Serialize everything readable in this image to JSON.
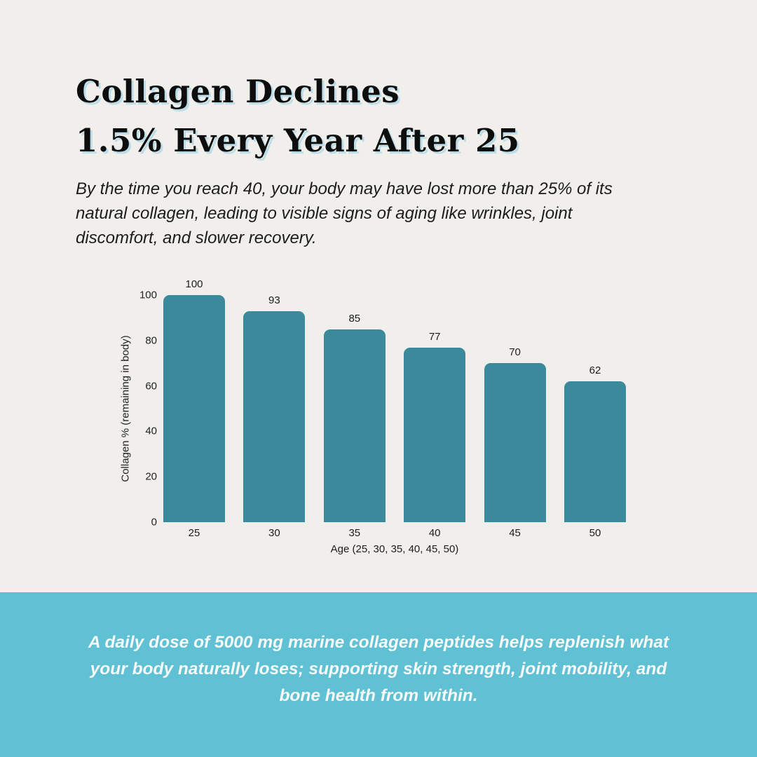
{
  "title": {
    "lines": [
      "Collagen Declines",
      "1.5% Every Year After 25"
    ],
    "text_color": "#0d0d0d",
    "shadow_color": "#bcdde8"
  },
  "subtitle": "By the time you reach 40, your body may have lost more than 25% of its natural collagen, leading to visible signs of aging like wrinkles, joint discomfort, and slower recovery.",
  "chart_data": {
    "type": "bar",
    "categories": [
      "25",
      "30",
      "35",
      "40",
      "45",
      "50"
    ],
    "values": [
      100,
      93,
      85,
      77,
      70,
      62
    ],
    "title": "",
    "xlabel": "Age (25, 30, 35, 40, 45, 50)",
    "ylabel": "Collagen % (remaining in body)",
    "ylim": [
      0,
      100
    ],
    "yticks": [
      0,
      20,
      40,
      60,
      80,
      100
    ],
    "grid": false,
    "legend": false,
    "value_labels_shown": true,
    "bar_color": "#3a8a9b"
  },
  "banner": {
    "text": "A daily dose of 5000 mg marine collagen peptides helps replenish what your body naturally loses; supporting skin strength, joint mobility, and bone health from within.",
    "background_color": "#60c0d4",
    "text_color": "#f5f9f8"
  },
  "colors": {
    "page_background": "#f0efec"
  }
}
